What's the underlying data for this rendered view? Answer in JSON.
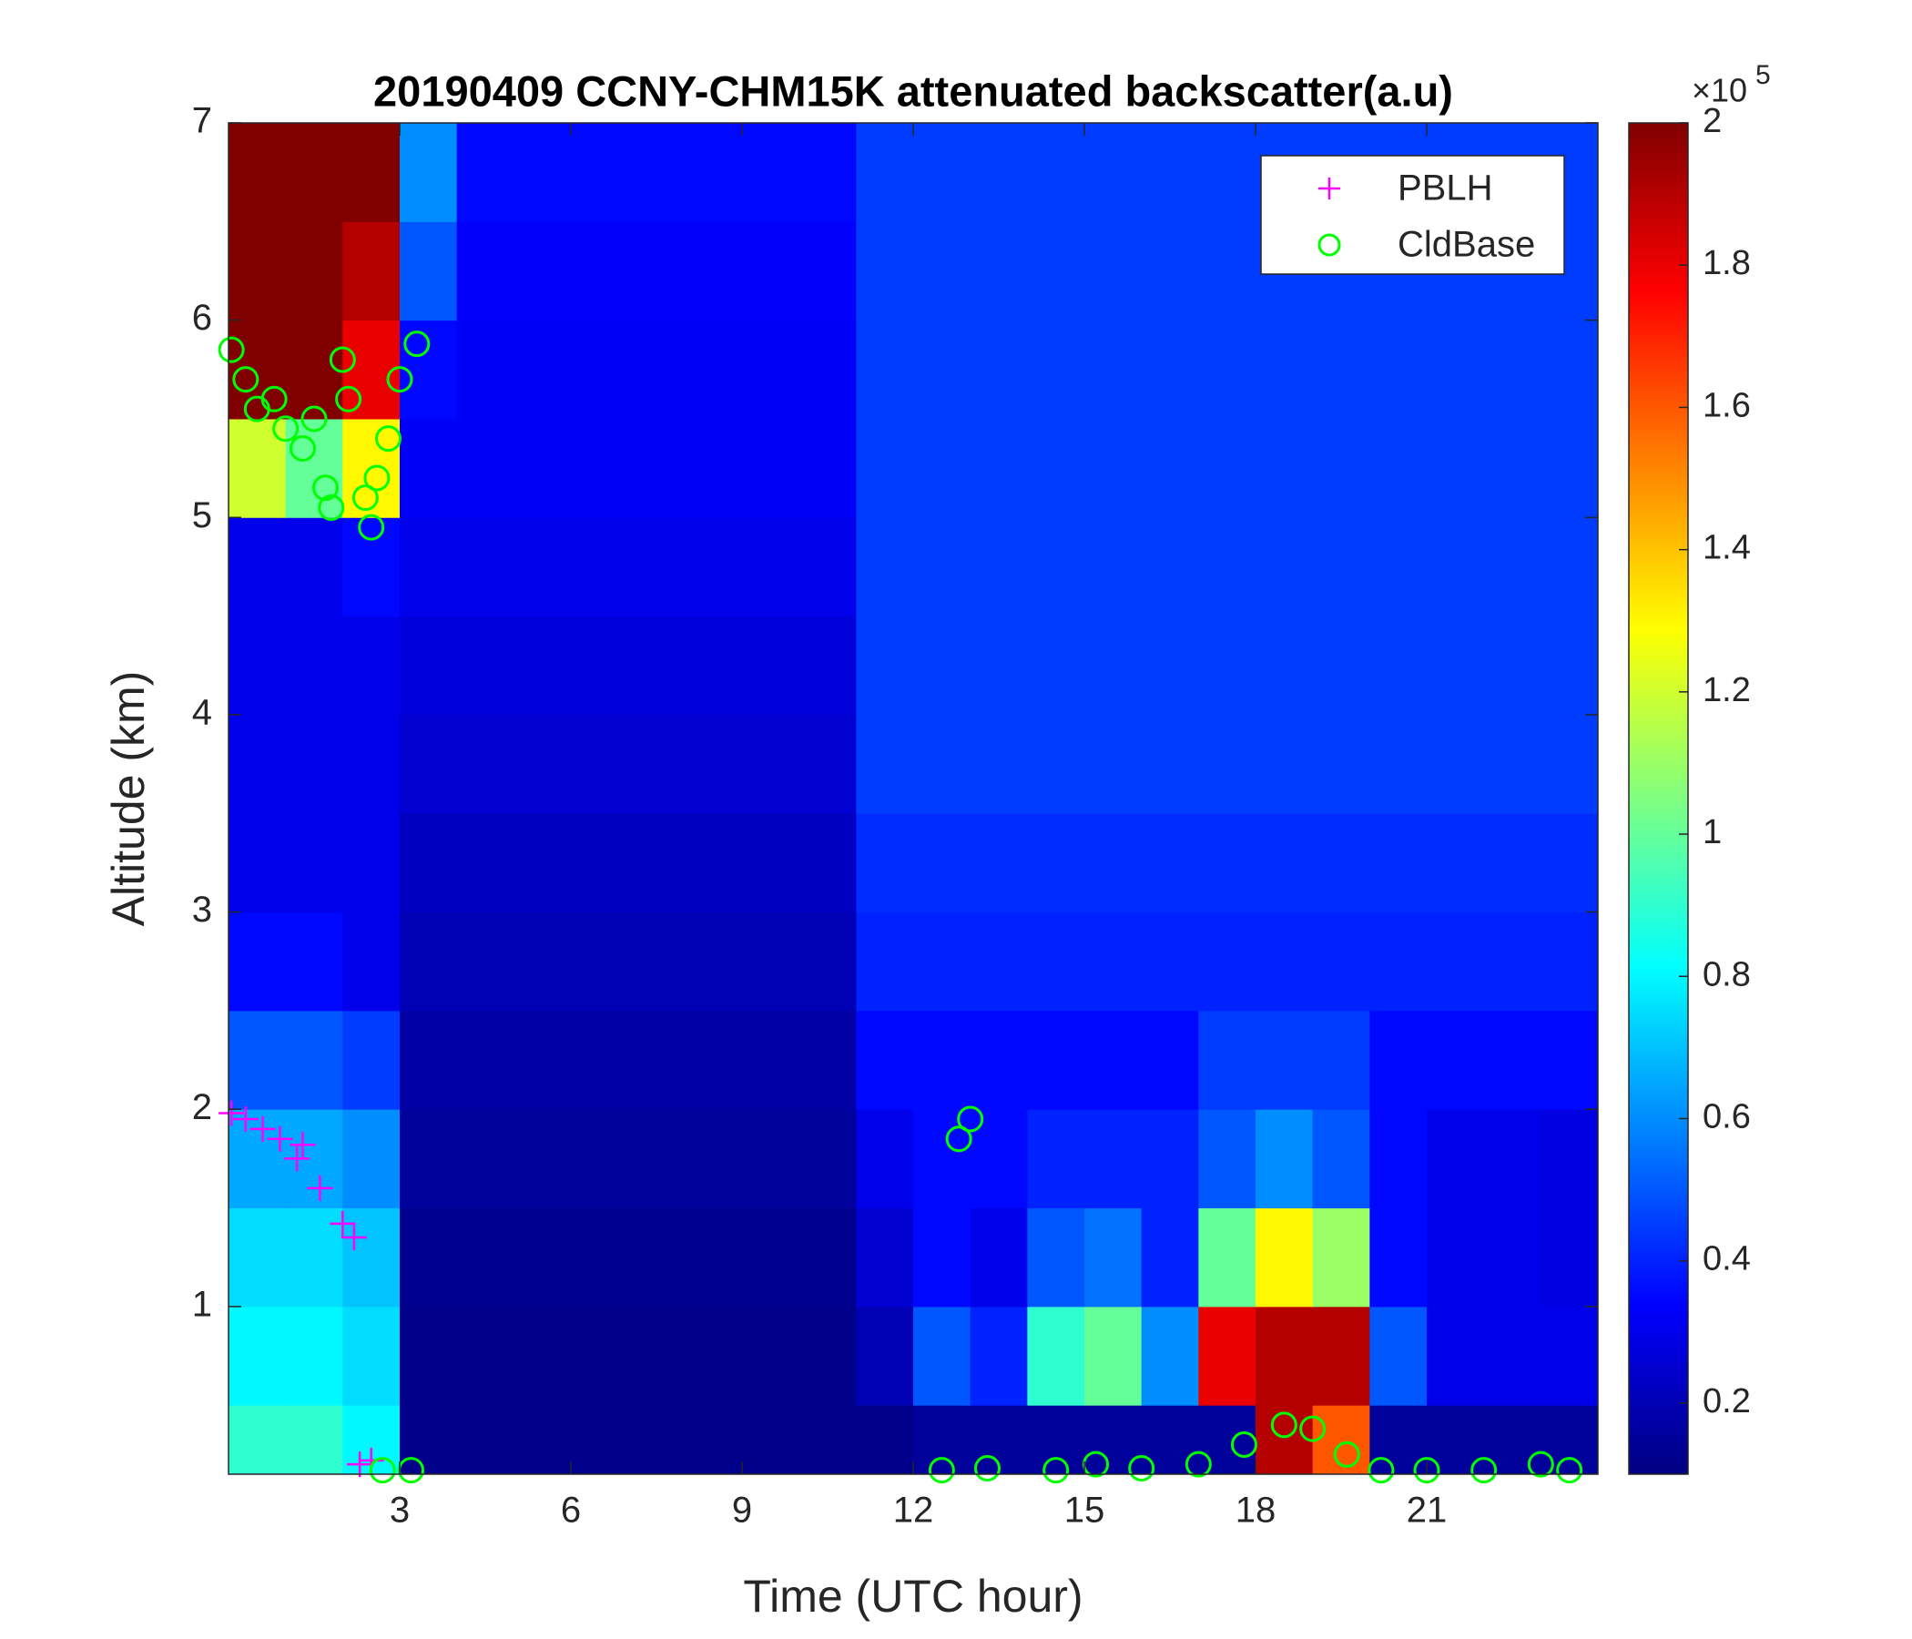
{
  "chart_data": {
    "type": "heatmap",
    "title": "20190409 CCNY-CHM15K attenuated backscatter(a.u)",
    "xlabel": "Time (UTC hour)",
    "ylabel": "Altitude (km)",
    "xlim": [
      0,
      24
    ],
    "xticks": [
      3,
      6,
      9,
      12,
      15,
      18,
      21
    ],
    "ylim": [
      0.15,
      7
    ],
    "yticks": [
      1,
      2,
      3,
      4,
      5,
      6,
      7
    ],
    "colormap": "jet",
    "clim": [
      0.1,
      2
    ],
    "cticks": [
      0.2,
      0.4,
      0.6,
      0.8,
      1,
      1.2,
      1.4,
      1.6,
      1.8,
      2
    ],
    "colorbar_multiplier": "×10",
    "colorbar_exponent": "5",
    "x": [
      0.5,
      1.5,
      2.5,
      3.5,
      4.5,
      5.5,
      6.5,
      7.5,
      8.5,
      9.5,
      10.5,
      11.5,
      12.5,
      13.5,
      14.5,
      15.5,
      16.5,
      17.5,
      18.5,
      19.5,
      20.5,
      21.5,
      22.5,
      23.5
    ],
    "y": [
      0.25,
      0.75,
      1.25,
      1.75,
      2.25,
      2.75,
      3.25,
      3.75,
      4.25,
      4.75,
      5.25,
      5.75,
      6.25,
      6.75
    ],
    "z": [
      [
        0.9,
        0.9,
        0.8,
        0.12,
        0.12,
        0.12,
        0.12,
        0.12,
        0.12,
        0.12,
        0.12,
        0.12,
        0.15,
        0.15,
        0.15,
        0.15,
        0.15,
        0.15,
        1.9,
        1.6,
        0.15,
        0.15,
        0.15,
        0.15
      ],
      [
        0.8,
        0.8,
        0.75,
        0.12,
        0.12,
        0.12,
        0.12,
        0.12,
        0.12,
        0.12,
        0.12,
        0.2,
        0.5,
        0.4,
        0.9,
        1.0,
        0.6,
        1.8,
        1.9,
        1.9,
        0.5,
        0.3,
        0.3,
        0.3
      ],
      [
        0.75,
        0.75,
        0.7,
        0.13,
        0.13,
        0.13,
        0.13,
        0.13,
        0.13,
        0.13,
        0.13,
        0.25,
        0.35,
        0.3,
        0.5,
        0.55,
        0.4,
        1.0,
        1.3,
        1.1,
        0.35,
        0.3,
        0.3,
        0.28
      ],
      [
        0.65,
        0.65,
        0.6,
        0.15,
        0.15,
        0.15,
        0.15,
        0.15,
        0.15,
        0.15,
        0.15,
        0.3,
        0.35,
        0.35,
        0.4,
        0.4,
        0.4,
        0.5,
        0.6,
        0.5,
        0.35,
        0.3,
        0.3,
        0.28
      ],
      [
        0.5,
        0.5,
        0.45,
        0.17,
        0.17,
        0.17,
        0.17,
        0.17,
        0.17,
        0.17,
        0.17,
        0.35,
        0.35,
        0.35,
        0.35,
        0.35,
        0.35,
        0.45,
        0.45,
        0.45,
        0.35,
        0.35,
        0.35,
        0.35
      ],
      [
        0.35,
        0.35,
        0.3,
        0.2,
        0.2,
        0.2,
        0.2,
        0.2,
        0.2,
        0.2,
        0.2,
        0.4,
        0.4,
        0.4,
        0.4,
        0.4,
        0.4,
        0.4,
        0.4,
        0.4,
        0.4,
        0.4,
        0.4,
        0.4
      ],
      [
        0.3,
        0.3,
        0.3,
        0.22,
        0.22,
        0.22,
        0.22,
        0.22,
        0.22,
        0.22,
        0.22,
        0.42,
        0.42,
        0.42,
        0.42,
        0.42,
        0.42,
        0.42,
        0.42,
        0.42,
        0.42,
        0.42,
        0.42,
        0.42
      ],
      [
        0.3,
        0.3,
        0.3,
        0.25,
        0.25,
        0.25,
        0.25,
        0.25,
        0.25,
        0.25,
        0.25,
        0.45,
        0.45,
        0.45,
        0.45,
        0.45,
        0.45,
        0.45,
        0.45,
        0.45,
        0.45,
        0.45,
        0.45,
        0.45
      ],
      [
        0.3,
        0.3,
        0.3,
        0.27,
        0.27,
        0.27,
        0.27,
        0.27,
        0.27,
        0.27,
        0.27,
        0.45,
        0.45,
        0.45,
        0.45,
        0.45,
        0.45,
        0.45,
        0.45,
        0.45,
        0.45,
        0.45,
        0.45,
        0.45
      ],
      [
        0.3,
        0.3,
        0.35,
        0.3,
        0.3,
        0.3,
        0.3,
        0.3,
        0.3,
        0.3,
        0.3,
        0.45,
        0.45,
        0.45,
        0.45,
        0.45,
        0.45,
        0.45,
        0.45,
        0.45,
        0.45,
        0.45,
        0.45,
        0.45
      ],
      [
        1.2,
        1.0,
        1.3,
        0.32,
        0.32,
        0.32,
        0.32,
        0.32,
        0.32,
        0.32,
        0.32,
        0.45,
        0.45,
        0.45,
        0.45,
        0.45,
        0.45,
        0.45,
        0.45,
        0.45,
        0.45,
        0.45,
        0.45,
        0.45
      ],
      [
        2,
        2,
        1.8,
        0.35,
        0.32,
        0.32,
        0.32,
        0.32,
        0.32,
        0.32,
        0.32,
        0.45,
        0.45,
        0.45,
        0.45,
        0.45,
        0.45,
        0.45,
        0.45,
        0.45,
        0.45,
        0.45,
        0.45,
        0.45
      ],
      [
        2,
        2,
        1.9,
        0.5,
        0.33,
        0.33,
        0.33,
        0.33,
        0.33,
        0.33,
        0.33,
        0.45,
        0.45,
        0.45,
        0.45,
        0.45,
        0.45,
        0.45,
        0.45,
        0.45,
        0.45,
        0.45,
        0.45,
        0.45
      ],
      [
        2,
        2,
        2,
        0.6,
        0.35,
        0.35,
        0.35,
        0.35,
        0.35,
        0.35,
        0.35,
        0.45,
        0.45,
        0.45,
        0.45,
        0.45,
        0.45,
        0.45,
        0.45,
        0.45,
        0.45,
        0.45,
        0.45,
        0.45
      ]
    ],
    "legend": "upper right",
    "scatter": [
      {
        "name": "PBLH",
        "color": "#ff00ff",
        "marker": "+",
        "x": [
          0.05,
          0.3,
          0.6,
          0.9,
          1.2,
          1.3,
          1.6,
          2.0,
          2.2,
          2.3,
          2.5
        ],
        "y": [
          1.98,
          1.95,
          1.9,
          1.85,
          1.75,
          1.82,
          1.6,
          1.42,
          1.35,
          0.2,
          0.22
        ]
      },
      {
        "name": "CldBase",
        "color": "#00ff00",
        "marker": "o",
        "x": [
          0.05,
          0.3,
          0.5,
          0.8,
          1.0,
          1.3,
          1.5,
          1.7,
          1.8,
          2.0,
          2.1,
          2.4,
          2.5,
          2.6,
          2.8,
          3.0,
          3.3,
          2.7,
          3.2,
          12.8,
          13.0,
          12.5,
          13.3,
          14.5,
          15.2,
          16.0,
          17.0,
          17.8,
          18.5,
          19.0,
          19.6,
          20.2,
          21.0,
          22.0,
          23.0,
          23.5
        ],
        "y": [
          5.85,
          5.7,
          5.55,
          5.6,
          5.45,
          5.35,
          5.5,
          5.15,
          5.05,
          5.8,
          5.6,
          5.1,
          4.95,
          5.2,
          5.4,
          5.7,
          5.88,
          0.17,
          0.17,
          1.85,
          1.95,
          0.17,
          0.18,
          0.17,
          0.2,
          0.18,
          0.2,
          0.3,
          0.4,
          0.38,
          0.25,
          0.17,
          0.17,
          0.17,
          0.2,
          0.17
        ]
      }
    ]
  }
}
